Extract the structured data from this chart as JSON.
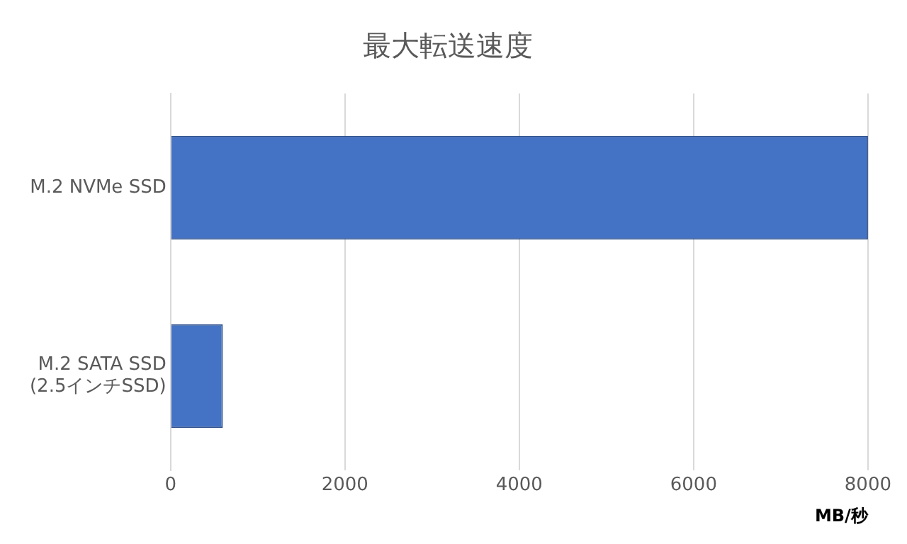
{
  "chart_data": {
    "type": "bar",
    "orientation": "horizontal",
    "title": "最大転送速度",
    "xlabel": "MB/秒",
    "categories": [
      "M.2 NVMe SSD",
      "M.2 SATA SSD (2.5インチSSD)"
    ],
    "values": [
      8000,
      600
    ],
    "color": "#4472c4",
    "xlim": [
      0,
      8000
    ],
    "xticks": [
      0,
      2000,
      4000,
      6000,
      8000
    ],
    "grid": "x",
    "legend": false
  }
}
